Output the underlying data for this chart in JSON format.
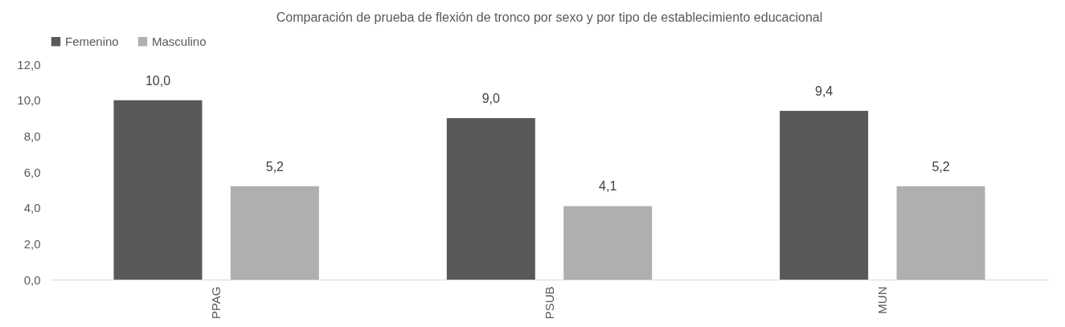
{
  "chart_data": {
    "type": "bar",
    "title": "Comparación de prueba de flexión de tronco por sexo y por tipo de establecimiento educacional",
    "categories": [
      "PPAG",
      "PSUB",
      "MUN"
    ],
    "series": [
      {
        "name": "Femenino",
        "color": "#595959",
        "values": [
          10.0,
          9.0,
          9.4
        ],
        "value_labels": [
          "10,0",
          "9,0",
          "9,4"
        ]
      },
      {
        "name": "Masculino",
        "color": "#afafaf",
        "values": [
          5.2,
          4.1,
          5.2
        ],
        "value_labels": [
          "5,2",
          "4,1",
          "5,2"
        ]
      }
    ],
    "ylim": [
      0,
      12
    ],
    "yticks": [
      {
        "value": 0,
        "label": "0,0"
      },
      {
        "value": 2,
        "label": "2,0"
      },
      {
        "value": 4,
        "label": "4,0"
      },
      {
        "value": 6,
        "label": "6,0"
      },
      {
        "value": 8,
        "label": "8,0"
      },
      {
        "value": 10,
        "label": "10,0"
      },
      {
        "value": 12,
        "label": "12,0"
      }
    ],
    "grid": false,
    "legend": "top"
  }
}
